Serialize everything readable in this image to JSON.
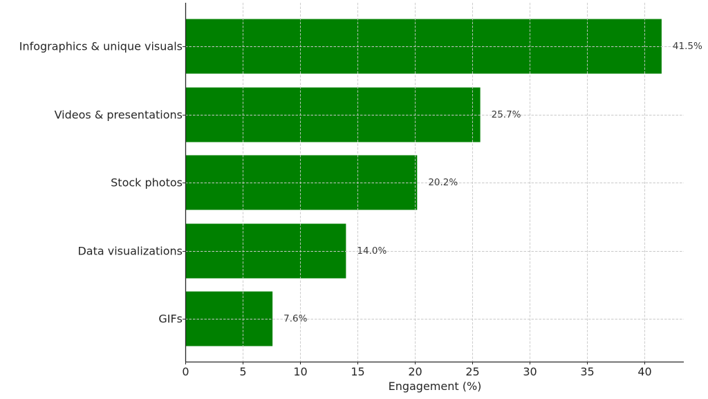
{
  "chart_data": {
    "type": "bar",
    "orientation": "horizontal",
    "title": "",
    "xlabel": "Engagement (%)",
    "ylabel": "",
    "categories": [
      "Infographics & unique visuals",
      "Videos & presentations",
      "Stock photos",
      "Data visualizations",
      "GIFs"
    ],
    "values": [
      41.5,
      25.7,
      20.2,
      14.0,
      7.6
    ],
    "value_labels": [
      "41.5%",
      "25.7%",
      "20.2%",
      "14.0%",
      "7.6%"
    ],
    "xlim": [
      0,
      43.6
    ],
    "xticks": [
      0,
      5,
      10,
      15,
      20,
      25,
      30,
      35,
      40
    ],
    "xtick_labels": [
      "0",
      "5",
      "10",
      "15",
      "20",
      "25",
      "30",
      "35",
      "40"
    ],
    "grid": true,
    "grid_style": "dashed",
    "legend": null,
    "bar_color": "#008000"
  },
  "labels": {
    "categories": [
      "Infographics & unique visuals",
      "Videos & presentations",
      "Stock photos",
      "Data visualizations",
      "GIFs"
    ],
    "values": [
      "41.5%",
      "25.7%",
      "20.2%",
      "14.0%",
      "7.6%"
    ],
    "xticks": [
      "0",
      "5",
      "10",
      "15",
      "20",
      "25",
      "30",
      "35",
      "40"
    ],
    "xaxis_title": "Engagement (%)"
  }
}
